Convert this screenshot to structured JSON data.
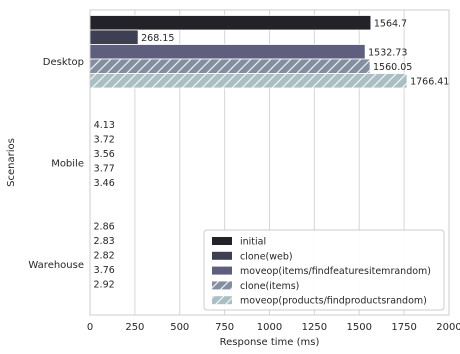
{
  "chart_data": {
    "type": "bar",
    "orientation": "horizontal",
    "categories": [
      "Desktop",
      "Mobile",
      "Warehouse"
    ],
    "xlabel": "Response time (ms)",
    "ylabel": "Scenarios",
    "xlim": [
      0,
      2000
    ],
    "xticks": [
      0,
      250,
      500,
      750,
      1000,
      1250,
      1500,
      1750,
      2000
    ],
    "grid": "vertical",
    "legend_position": "bottom-right",
    "series": [
      {
        "name": "initial",
        "values": [
          1564.7,
          4.13,
          2.86
        ],
        "labels": [
          "1564.7",
          "4.13",
          "2.86"
        ],
        "color": "#232228",
        "hatch": false
      },
      {
        "name": "clone(web)",
        "values": [
          268.15,
          3.72,
          2.83
        ],
        "labels": [
          "268.15",
          "3.72",
          "2.83"
        ],
        "color": "#3f3f54",
        "hatch": false
      },
      {
        "name": "moveop(items/findfeaturesitemrandom)",
        "values": [
          1532.73,
          3.56,
          2.82
        ],
        "labels": [
          "1532.73",
          "3.56",
          "2.82"
        ],
        "color": "#5d5f7d",
        "hatch": false
      },
      {
        "name": "clone(items)",
        "values": [
          1560.05,
          3.77,
          3.76
        ],
        "labels": [
          "1560.05",
          "3.77",
          "3.76"
        ],
        "color": "#838fa0",
        "hatch": true
      },
      {
        "name": "moveop(products/findproductsrandom)",
        "values": [
          1766.41,
          3.46,
          2.92
        ],
        "labels": [
          "1766.41",
          "3.46",
          "2.92"
        ],
        "color": "#a9bfc3",
        "hatch": true
      }
    ]
  }
}
